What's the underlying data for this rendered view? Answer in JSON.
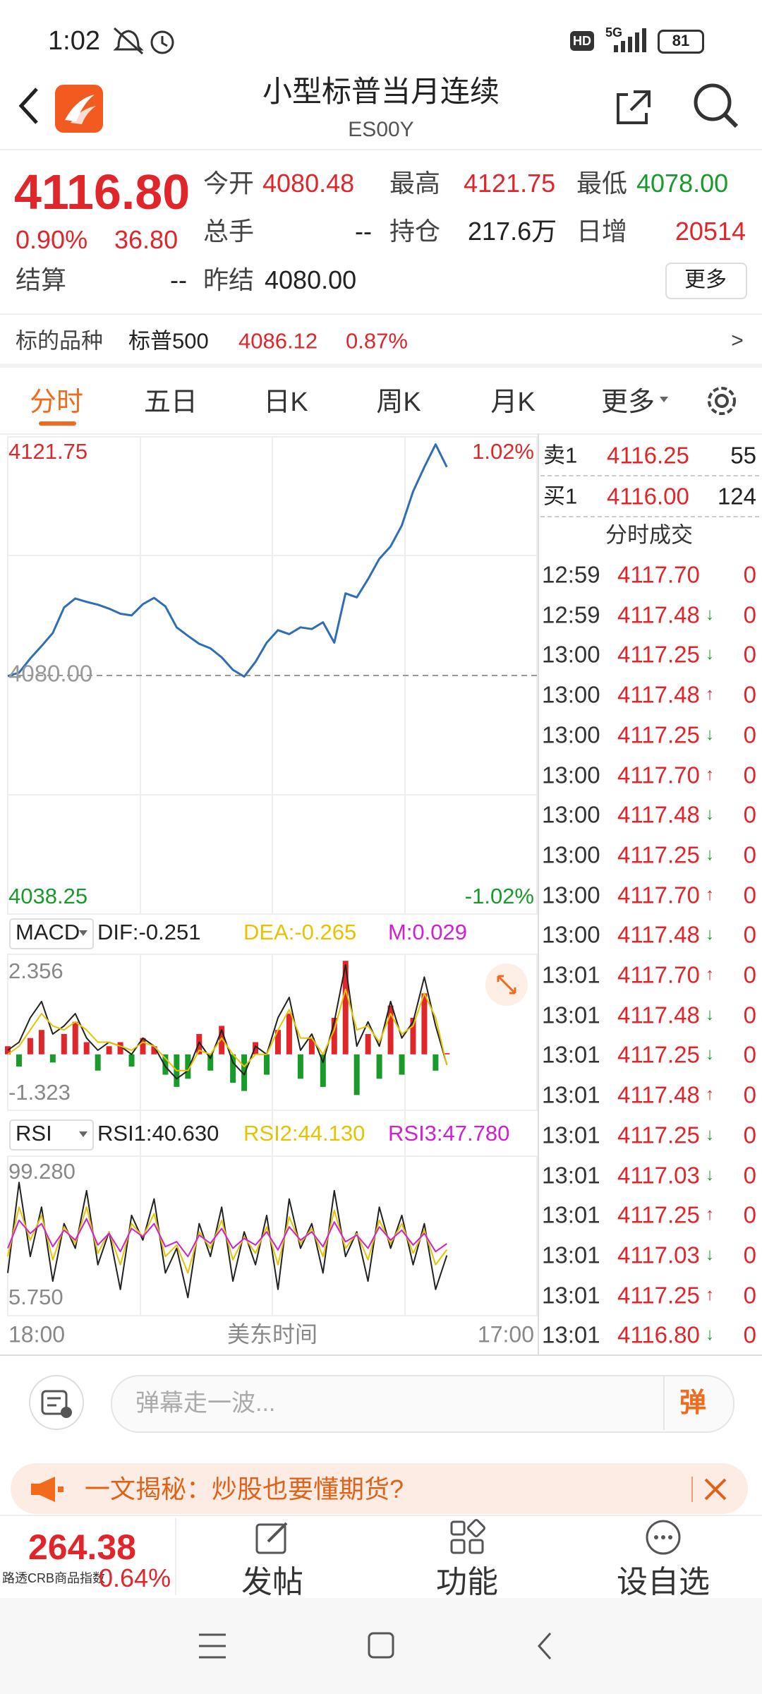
{
  "status_bar": {
    "time": "1:02",
    "hd": "HD",
    "network": "5G",
    "battery": "81"
  },
  "header": {
    "title": "小型标普当月连续",
    "code": "ES00Y"
  },
  "quote": {
    "price": "4116.80",
    "change_pct": "0.90%",
    "change": "36.80",
    "fields": [
      {
        "label": "今开",
        "value": "4080.48"
      },
      {
        "label": "最高",
        "value": "4121.75"
      },
      {
        "label": "最低",
        "value": "4078.00"
      },
      {
        "label": "总手",
        "value": "--"
      },
      {
        "label": "持仓",
        "value": "217.6万"
      },
      {
        "label": "日增",
        "value": "20514"
      },
      {
        "label": "结算",
        "value": "--"
      },
      {
        "label": "昨结",
        "value": "4080.00"
      }
    ],
    "more": "更多"
  },
  "underlying": {
    "label": "标的品种",
    "name": "标普500",
    "price": "4086.12",
    "change_pct": "0.87%",
    "arrow": ">"
  },
  "tabs": [
    "分时",
    "五日",
    "日K",
    "周K",
    "月K",
    "更多"
  ],
  "intraday": {
    "type": "line",
    "color": "#2f6db5",
    "ylim": [
      4038.25,
      4121.75
    ],
    "yticks": [
      4038.25,
      4121.75
    ],
    "pct_labels": [
      "-1.02%",
      "1.02%"
    ],
    "reference": {
      "value": 4080,
      "label": "4080.00"
    },
    "values": [
      4079.9,
      4080.5,
      4083.0,
      4085.2,
      4087.5,
      4092.0,
      4093.6,
      4093.0,
      4092.5,
      4091.8,
      4090.9,
      4090.6,
      4092.6,
      4093.7,
      4092.2,
      4088.5,
      4087.0,
      4085.6,
      4084.8,
      4083.2,
      4081.0,
      4079.8,
      4082.4,
      4085.8,
      4088.0,
      4087.3,
      4088.5,
      4088.2,
      4089.4,
      4085.8,
      4094.5,
      4093.8,
      4097.0,
      4100.6,
      4102.8,
      4106.5,
      4112.5,
      4116.8,
      4120.8,
      4116.8,
      null,
      null,
      null,
      null,
      null,
      null,
      null,
      null
    ],
    "x_labels": [
      "18:00",
      "美东时间",
      "17:00"
    ]
  },
  "macd": {
    "name": "MACD",
    "ylim": [
      -1.323,
      2.356
    ],
    "yticks": [
      -1.323,
      2.356
    ],
    "up_color": "#e0262b",
    "down_color": "#1a9a2a",
    "series": [
      {
        "label": "DIF:-0.251",
        "color": "#222222",
        "kind": "line",
        "values": [
          0.1,
          0.3,
          0.9,
          1.3,
          0.5,
          0.7,
          1.0,
          0.4,
          0.1,
          0.3,
          0.2,
          0.0,
          0.4,
          0.2,
          -0.3,
          -0.6,
          -0.4,
          0.3,
          -0.1,
          0.6,
          -0.2,
          -0.5,
          0.2,
          0.0,
          0.9,
          1.4,
          0.1,
          0.5,
          -0.2,
          0.8,
          2.2,
          0.2,
          0.8,
          0.2,
          1.3,
          0.4,
          0.8,
          1.9,
          0.7,
          -0.251,
          null,
          null,
          null,
          null,
          null,
          null,
          null,
          null
        ]
      },
      {
        "label": "DEA:-0.265",
        "color": "#e6c300",
        "kind": "line",
        "values": [
          0.0,
          0.2,
          0.6,
          1.0,
          0.7,
          0.6,
          0.8,
          0.6,
          0.3,
          0.3,
          0.2,
          0.1,
          0.3,
          0.2,
          -0.1,
          -0.4,
          -0.4,
          0.1,
          0.0,
          0.4,
          0.0,
          -0.3,
          0.0,
          0.0,
          0.6,
          1.1,
          0.4,
          0.4,
          0.0,
          0.6,
          1.6,
          0.6,
          0.7,
          0.3,
          1.0,
          0.5,
          0.7,
          1.5,
          0.9,
          -0.265,
          null,
          null,
          null,
          null,
          null,
          null,
          null,
          null
        ]
      },
      {
        "label": "M:0.029",
        "color": "#d020d0",
        "kind": "bar",
        "values": [
          0.2,
          -0.3,
          0.4,
          0.6,
          -0.2,
          0.5,
          0.8,
          0.3,
          -0.4,
          0.2,
          0.3,
          -0.3,
          0.4,
          0.2,
          -0.5,
          -0.8,
          -0.6,
          0.5,
          -0.4,
          0.7,
          -0.7,
          -0.9,
          0.3,
          -0.5,
          0.6,
          1.0,
          -0.6,
          0.4,
          -0.8,
          0.9,
          2.3,
          -1.0,
          0.5,
          -0.6,
          1.2,
          -0.5,
          0.9,
          1.5,
          -0.4,
          0.029,
          null,
          null,
          null,
          null,
          null,
          null,
          null,
          null
        ]
      }
    ]
  },
  "rsi": {
    "name": "RSI",
    "ylim": [
      5.75,
      99.28
    ],
    "yticks": [
      {
        "value": 5.75,
        "label": "5.750"
      },
      {
        "value": 99.28,
        "label": "99.280"
      }
    ],
    "series": [
      {
        "label": "RSI1:40.630",
        "color": "#222222",
        "values": [
          30,
          85,
          40,
          70,
          25,
          60,
          45,
          80,
          35,
          55,
          20,
          65,
          50,
          75,
          30,
          45,
          15,
          60,
          40,
          70,
          25,
          55,
          35,
          65,
          20,
          75,
          45,
          60,
          30,
          80,
          40,
          55,
          25,
          70,
          45,
          65,
          35,
          60,
          20,
          40.63,
          null,
          null,
          null,
          null,
          null,
          null,
          null,
          null
        ]
      },
      {
        "label": "RSI2:44.130",
        "color": "#e6c300",
        "values": [
          40,
          70,
          50,
          65,
          38,
          58,
          48,
          70,
          42,
          55,
          35,
          60,
          52,
          66,
          40,
          47,
          30,
          55,
          45,
          62,
          38,
          52,
          42,
          58,
          35,
          64,
          48,
          57,
          40,
          68,
          45,
          54,
          38,
          62,
          48,
          60,
          42,
          56,
          35,
          44.13,
          null,
          null,
          null,
          null,
          null,
          null,
          null,
          null
        ]
      },
      {
        "label": "RSI3:47.780",
        "color": "#d020d0",
        "values": [
          45,
          62,
          54,
          60,
          46,
          56,
          50,
          63,
          47,
          54,
          43,
          57,
          52,
          60,
          46,
          49,
          40,
          53,
          48,
          57,
          45,
          51,
          47,
          55,
          44,
          58,
          50,
          55,
          46,
          61,
          49,
          53,
          45,
          58,
          50,
          56,
          47,
          54,
          43,
          47.78,
          null,
          null,
          null,
          null,
          null,
          null,
          null,
          null
        ]
      }
    ]
  },
  "order_book": [
    {
      "side": "卖1",
      "price": "4116.25",
      "volume": "55"
    },
    {
      "side": "买1",
      "price": "4116.00",
      "volume": "124"
    }
  ],
  "trades_title": "分时成交",
  "trades": [
    {
      "time": "12:59",
      "price": "4117.70",
      "volume": "0"
    },
    {
      "time": "12:59",
      "price": "4117.48",
      "arrow": "↓",
      "volume": "0"
    },
    {
      "time": "13:00",
      "price": "4117.25",
      "arrow": "↓",
      "volume": "0"
    },
    {
      "time": "13:00",
      "price": "4117.48",
      "arrow": "↑",
      "volume": "0"
    },
    {
      "time": "13:00",
      "price": "4117.25",
      "arrow": "↓",
      "volume": "0"
    },
    {
      "time": "13:00",
      "price": "4117.70",
      "arrow": "↑",
      "volume": "0"
    },
    {
      "time": "13:00",
      "price": "4117.48",
      "arrow": "↓",
      "volume": "0"
    },
    {
      "time": "13:00",
      "price": "4117.25",
      "arrow": "↓",
      "volume": "0"
    },
    {
      "time": "13:00",
      "price": "4117.70",
      "arrow": "↑",
      "volume": "0"
    },
    {
      "time": "13:00",
      "price": "4117.48",
      "arrow": "↓",
      "volume": "0"
    },
    {
      "time": "13:01",
      "price": "4117.70",
      "arrow": "↑",
      "volume": "0"
    },
    {
      "time": "13:01",
      "price": "4117.48",
      "arrow": "↓",
      "volume": "0"
    },
    {
      "time": "13:01",
      "price": "4117.25",
      "arrow": "↓",
      "volume": "0"
    },
    {
      "time": "13:01",
      "price": "4117.48",
      "arrow": "↑",
      "volume": "0"
    },
    {
      "time": "13:01",
      "price": "4117.25",
      "arrow": "↓",
      "volume": "0"
    },
    {
      "time": "13:01",
      "price": "4117.03",
      "arrow": "↓",
      "volume": "0"
    },
    {
      "time": "13:01",
      "price": "4117.25",
      "arrow": "↑",
      "volume": "0"
    },
    {
      "time": "13:01",
      "price": "4117.03",
      "arrow": "↓",
      "volume": "0"
    },
    {
      "time": "13:01",
      "price": "4117.25",
      "arrow": "↑",
      "volume": "0"
    },
    {
      "time": "13:01",
      "price": "4116.80",
      "arrow": "↓",
      "volume": "0"
    }
  ],
  "comment": {
    "placeholder": "弹幕走一波...",
    "button": "弹"
  },
  "banner": {
    "text": "一文揭秘：炒股也要懂期货?"
  },
  "bottom_bar": {
    "index_value": "264.38",
    "index_name": "路透CRB商品指数",
    "index_change": "0.64%",
    "actions": [
      "发帖",
      "功能",
      "设自选"
    ]
  }
}
